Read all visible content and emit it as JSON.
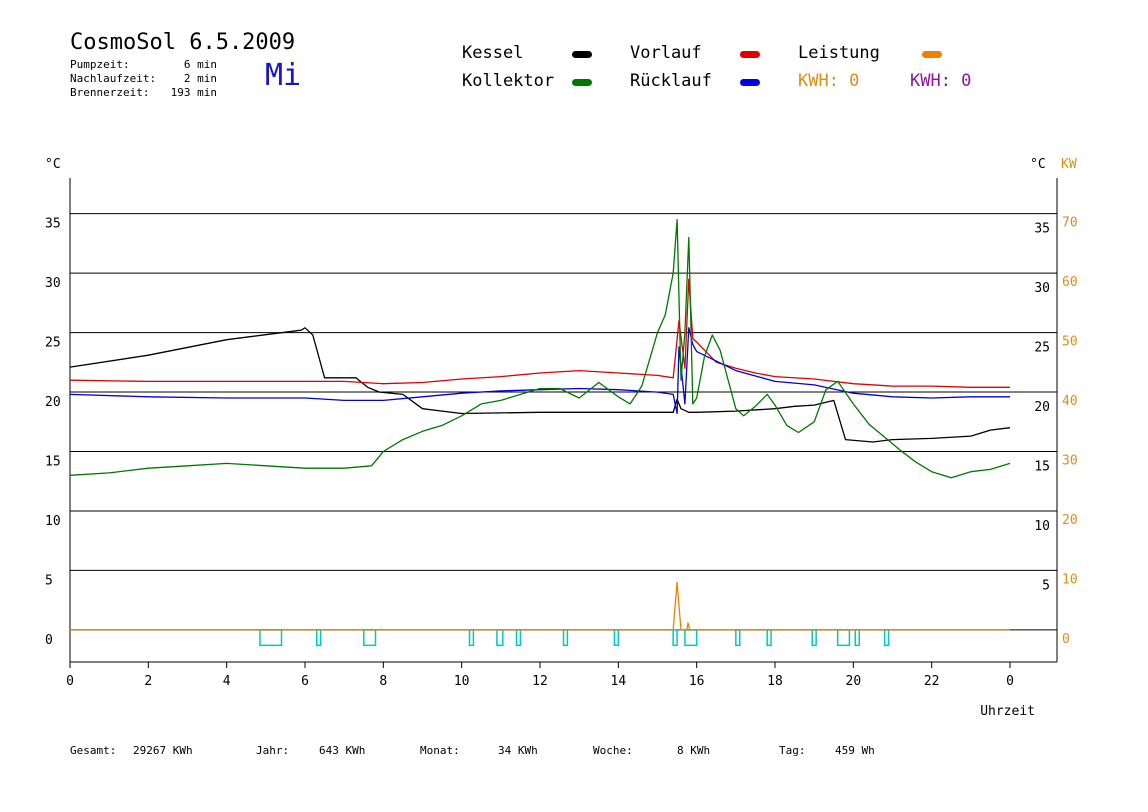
{
  "header": {
    "title": "CosmoSol 6.5.2009",
    "day": "Mi",
    "stats": [
      {
        "label": "Pumpzeit:",
        "value": "6 min"
      },
      {
        "label": "Nachlaufzeit:",
        "value": "2 min"
      },
      {
        "label": "Brennerzeit:",
        "value": "193 min"
      }
    ]
  },
  "legend": {
    "kessel": {
      "label": "Kessel",
      "color": "#000000"
    },
    "vorlauf": {
      "label": "Vorlauf",
      "color": "#e00000"
    },
    "leistung": {
      "label": "Leistung",
      "color": "#f08000"
    },
    "kollektor": {
      "label": "Kollektor",
      "color": "#007800"
    },
    "ruecklauf": {
      "label": "Rücklauf",
      "color": "#0000e0"
    },
    "kwh1": "KWH: 0",
    "kwh2": "KWH: 0",
    "kwh1_color": "#e08c14",
    "kwh2_color": "#8c14a0"
  },
  "footer": [
    {
      "label": "Gesamt:",
      "value": "29267 KWh"
    },
    {
      "label": "Jahr:",
      "value": "643 KWh"
    },
    {
      "label": "Monat:",
      "value": "34 KWh"
    },
    {
      "label": "Woche:",
      "value": "8 KWh"
    },
    {
      "label": "Tag:",
      "value": "459 Wh"
    }
  ],
  "chart_data": {
    "type": "line",
    "left_axis_label": "°C",
    "right_axis_label": "°C",
    "right_axis2_label": "KW",
    "xlabel": "Uhrzeit",
    "x_ticks": [
      "0",
      "2",
      "4",
      "6",
      "8",
      "10",
      "12",
      "14",
      "16",
      "18",
      "20",
      "22",
      "0"
    ],
    "y_ticks": [
      0,
      5,
      10,
      15,
      20,
      25,
      30,
      35
    ],
    "y_ticks_right": [
      5,
      10,
      15,
      20,
      25,
      30,
      35
    ],
    "kw_ticks": [
      0,
      10,
      20,
      30,
      40,
      50,
      60,
      70
    ],
    "xlim": [
      0,
      24
    ],
    "ylim": [
      -2.7,
      38
    ],
    "grid": "horizontal",
    "series": [
      {
        "name": "Kessel",
        "color": "#000000",
        "x": [
          0,
          2,
          4,
          5.9,
          6.0,
          6.2,
          6.5,
          7.3,
          7.6,
          7.9,
          8.5,
          9.0,
          9.5,
          10.0,
          12.0,
          14.0,
          15.4,
          15.5,
          15.6,
          15.8,
          16.0,
          17.0,
          18.0,
          18.5,
          19.0,
          19.5,
          19.8,
          20.5,
          21.0,
          22.0,
          23.0,
          23.5,
          24.0
        ],
        "y": [
          22.1,
          23.1,
          24.4,
          25.2,
          25.4,
          24.8,
          21.2,
          21.2,
          20.4,
          20.0,
          19.8,
          18.6,
          18.4,
          18.2,
          18.3,
          18.3,
          18.3,
          19.4,
          18.6,
          18.3,
          18.3,
          18.4,
          18.6,
          18.8,
          18.9,
          19.3,
          16.0,
          15.8,
          16.0,
          16.1,
          16.3,
          16.8,
          17.0
        ]
      },
      {
        "name": "Vorlauf",
        "color": "#e00000",
        "x": [
          0,
          2,
          4,
          6,
          7,
          8,
          9,
          10,
          11,
          12,
          13,
          14,
          15,
          15.4,
          15.55,
          15.7,
          15.8,
          15.9,
          16.0,
          16.5,
          17.0,
          17.5,
          18.0,
          19.0,
          20.0,
          21.0,
          22.0,
          23.0,
          23.5,
          24.0
        ],
        "y": [
          21.0,
          20.9,
          20.9,
          20.9,
          20.9,
          20.7,
          20.8,
          21.1,
          21.3,
          21.6,
          21.8,
          21.6,
          21.4,
          21.2,
          26.0,
          22.0,
          29.5,
          24.5,
          24.2,
          22.5,
          22.0,
          21.6,
          21.3,
          21.1,
          20.7,
          20.5,
          20.5,
          20.4,
          20.4,
          20.4
        ]
      },
      {
        "name": "Rücklauf",
        "color": "#0000e0",
        "x": [
          0,
          2,
          4,
          6,
          7,
          8,
          9,
          10,
          11,
          12,
          13,
          14,
          15,
          15.4,
          15.5,
          15.55,
          15.7,
          15.8,
          15.9,
          16.0,
          16.5,
          17.0,
          18.0,
          19.0,
          20.0,
          21.0,
          22.0,
          23.0,
          24.0
        ],
        "y": [
          19.8,
          19.6,
          19.5,
          19.5,
          19.3,
          19.3,
          19.6,
          19.9,
          20.1,
          20.2,
          20.3,
          20.2,
          20.0,
          19.8,
          18.2,
          23.8,
          19.0,
          25.4,
          24.0,
          23.4,
          22.6,
          21.8,
          20.9,
          20.6,
          19.9,
          19.6,
          19.5,
          19.6,
          19.6
        ]
      },
      {
        "name": "Kollektor",
        "color": "#007800",
        "x": [
          0,
          1,
          2,
          3,
          4,
          5,
          6,
          7,
          7.7,
          8,
          8.5,
          9,
          9.5,
          10,
          10.5,
          11,
          11.5,
          12,
          12.5,
          13,
          13.5,
          14,
          14.3,
          14.6,
          15.0,
          15.2,
          15.4,
          15.5,
          15.6,
          15.7,
          15.8,
          15.9,
          16.0,
          16.2,
          16.4,
          16.6,
          17.0,
          17.2,
          17.5,
          17.8,
          18.0,
          18.3,
          18.6,
          19.0,
          19.3,
          19.6,
          20.0,
          20.4,
          20.8,
          21.2,
          21.6,
          22.0,
          22.5,
          23.0,
          23.5,
          24.0
        ],
        "y": [
          13.0,
          13.2,
          13.6,
          13.8,
          14.0,
          13.8,
          13.6,
          13.6,
          13.8,
          15.0,
          16.0,
          16.7,
          17.2,
          18.0,
          19.0,
          19.3,
          19.8,
          20.3,
          20.3,
          19.5,
          20.8,
          19.6,
          19.0,
          20.5,
          25.0,
          26.5,
          30.0,
          34.5,
          21.0,
          25.0,
          33.0,
          19.0,
          19.5,
          23.0,
          24.8,
          23.5,
          18.6,
          18.0,
          18.8,
          19.8,
          18.9,
          17.2,
          16.6,
          17.5,
          20.2,
          20.9,
          19.0,
          17.3,
          16.2,
          15.1,
          14.1,
          13.3,
          12.8,
          13.3,
          13.5,
          14.0
        ]
      },
      {
        "name": "Leistung",
        "color": "#f08000",
        "axis": "kw",
        "x": [
          0,
          15.4,
          15.45,
          15.5,
          15.55,
          15.6,
          15.75,
          15.78,
          15.82,
          24
        ],
        "y": [
          0,
          0,
          4,
          8,
          4,
          0,
          0,
          1.2,
          0,
          0
        ]
      }
    ],
    "pump_intervals": [
      [
        4.85,
        5.4
      ],
      [
        6.3,
        6.4
      ],
      [
        7.5,
        7.8
      ],
      [
        10.2,
        10.3
      ],
      [
        10.9,
        11.05
      ],
      [
        11.4,
        11.5
      ],
      [
        12.6,
        12.7
      ],
      [
        13.9,
        14.0
      ],
      [
        15.4,
        15.5
      ],
      [
        15.7,
        16.0
      ],
      [
        17.0,
        17.1
      ],
      [
        17.8,
        17.9
      ],
      [
        18.95,
        19.05
      ],
      [
        19.6,
        19.9
      ],
      [
        20.05,
        20.15
      ],
      [
        20.8,
        20.9
      ]
    ],
    "pump_color": "#00c8c8"
  }
}
